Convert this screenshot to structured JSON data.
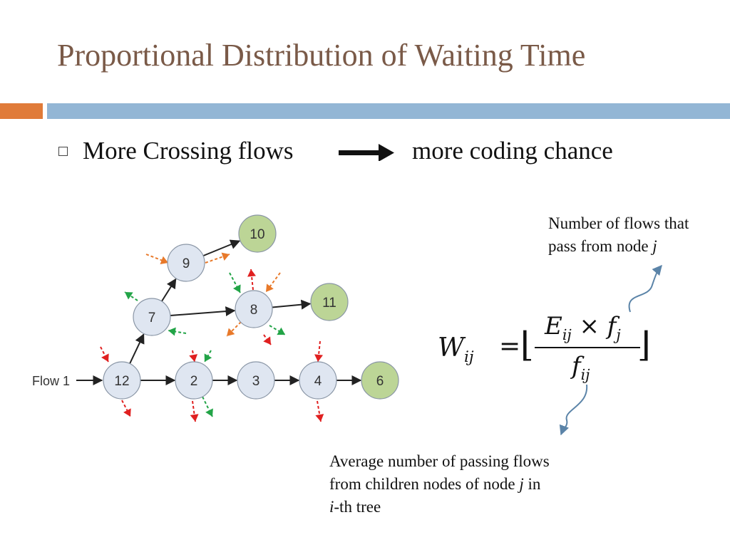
{
  "slide": {
    "title": "Proportional Distribution of Waiting Time",
    "bullet_left": "More Crossing flows",
    "bullet_right": "more coding chance"
  },
  "diagram": {
    "flow_label": "Flow 1",
    "nodes": [
      {
        "id": "12",
        "type": "relay"
      },
      {
        "id": "2",
        "type": "relay"
      },
      {
        "id": "3",
        "type": "relay"
      },
      {
        "id": "4",
        "type": "relay"
      },
      {
        "id": "6",
        "type": "destination"
      },
      {
        "id": "7",
        "type": "relay"
      },
      {
        "id": "8",
        "type": "relay"
      },
      {
        "id": "9",
        "type": "relay"
      },
      {
        "id": "10",
        "type": "destination"
      },
      {
        "id": "11",
        "type": "destination"
      }
    ],
    "edges": [
      [
        "12",
        "2"
      ],
      [
        "2",
        "3"
      ],
      [
        "3",
        "4"
      ],
      [
        "4",
        "6"
      ],
      [
        "12",
        "7"
      ],
      [
        "7",
        "9"
      ],
      [
        "9",
        "10"
      ],
      [
        "7",
        "8"
      ],
      [
        "8",
        "11"
      ]
    ],
    "colors": {
      "relay_fill": "#dfe6f1",
      "destination_fill": "#bcd596",
      "red_flow": "#e02020",
      "green_flow": "#22a447",
      "orange_flow": "#e8792a",
      "edge": "#222222"
    }
  },
  "formula": {
    "lhs": "W",
    "lhs_sub": "ij",
    "equals": "=",
    "floor_left": "⌊",
    "floor_right": "⌋",
    "num_e": "E",
    "num_e_sub": "ij",
    "times": "×",
    "num_f": "f",
    "num_f_sub": "j",
    "den_f": "f",
    "den_f_sub": "ij"
  },
  "annotations": {
    "top_line1": "Number of flows that",
    "top_line2": "pass from node ",
    "top_var": "j",
    "bottom_line1": "Average number of passing flows",
    "bottom_line2": "from children nodes of node ",
    "bottom_var": "j",
    "bottom_in": " in",
    "bottom_line3_var": "i",
    "bottom_line3": "-th tree"
  }
}
